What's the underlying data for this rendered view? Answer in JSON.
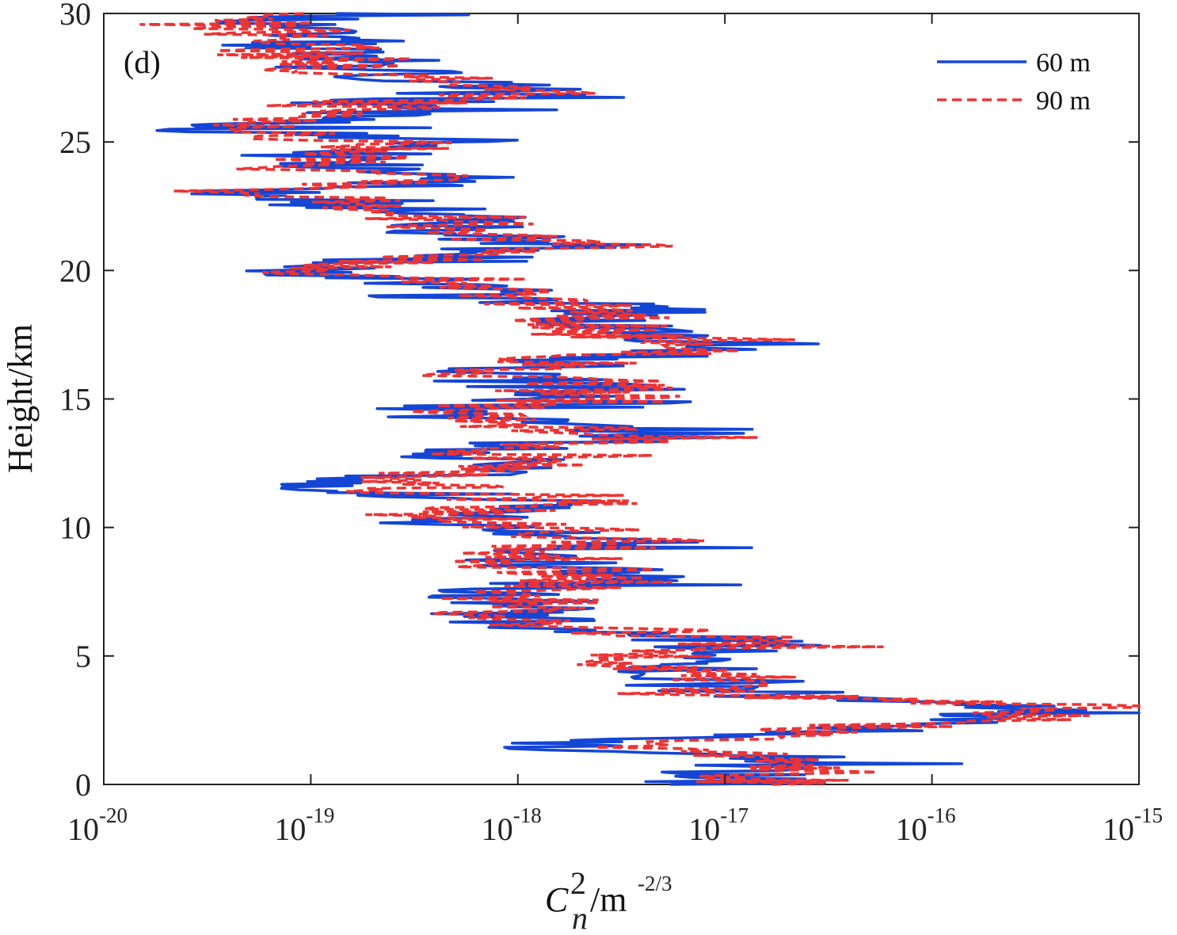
{
  "chart_data": {
    "type": "line",
    "panel_label": "(d)",
    "xscale": "log",
    "xlim_exp": [
      -20,
      -15
    ],
    "ylim": [
      0,
      30
    ],
    "xlabel": {
      "base": "C",
      "sub": "n",
      "sup": "2",
      "unit": "/m",
      "unit_sup": "-2/3"
    },
    "ylabel": "Height/km",
    "tick_base": "10",
    "xtick_exponents": [
      "-20",
      "-19",
      "-18",
      "-17",
      "-16",
      "-15"
    ],
    "ytick_labels": [
      "0",
      "5",
      "10",
      "15",
      "20",
      "25",
      "30"
    ],
    "legend_position": "top-right",
    "series": [
      {
        "name": "60 m",
        "color": "#1446d6",
        "style": "solid",
        "heights": [
          0.0,
          0.5,
          1.0,
          1.5,
          2.0,
          2.5,
          3.0,
          3.5,
          4.0,
          4.5,
          5.0,
          5.5,
          6.0,
          6.5,
          7.0,
          7.5,
          8.0,
          8.5,
          9.0,
          9.5,
          10.0,
          10.5,
          11.0,
          11.5,
          12.0,
          12.5,
          13.0,
          13.5,
          14.0,
          14.5,
          15.0,
          15.5,
          16.0,
          16.5,
          17.0,
          17.5,
          18.0,
          18.5,
          19.0,
          19.5,
          20.0,
          20.5,
          21.0,
          21.5,
          22.0,
          22.5,
          23.0,
          23.5,
          24.0,
          24.5,
          25.0,
          25.5,
          26.0,
          26.5,
          27.0,
          27.5,
          28.0,
          28.5,
          29.0,
          29.5,
          30.0
        ],
        "log10_cn2": [
          -16.9,
          -17.1,
          -16.7,
          -17.9,
          -16.8,
          -15.6,
          -15.5,
          -17.1,
          -17.0,
          -17.4,
          -17.3,
          -16.8,
          -17.6,
          -18.0,
          -17.9,
          -18.1,
          -17.5,
          -17.9,
          -17.8,
          -17.4,
          -18.0,
          -18.5,
          -17.9,
          -18.8,
          -18.5,
          -18.1,
          -18.3,
          -17.4,
          -17.9,
          -18.5,
          -17.8,
          -17.8,
          -18.2,
          -17.6,
          -16.8,
          -17.4,
          -17.6,
          -17.4,
          -18.3,
          -18.3,
          -19.2,
          -18.4,
          -17.7,
          -18.5,
          -18.2,
          -18.7,
          -19.3,
          -18.3,
          -18.9,
          -18.8,
          -18.5,
          -19.5,
          -18.9,
          -18.7,
          -18.0,
          -18.4,
          -18.9,
          -19.0,
          -19.0,
          -19.2,
          -19.2
        ]
      },
      {
        "name": "90 m",
        "color": "#ee3333",
        "style": "dashed",
        "heights": [
          0.0,
          0.5,
          1.0,
          1.5,
          2.0,
          2.5,
          3.0,
          3.5,
          4.0,
          4.5,
          5.0,
          5.5,
          6.0,
          6.5,
          7.0,
          7.5,
          8.0,
          8.5,
          9.0,
          9.5,
          10.0,
          10.5,
          11.0,
          11.5,
          12.0,
          12.5,
          13.0,
          13.5,
          14.0,
          14.5,
          15.0,
          15.5,
          16.0,
          16.5,
          17.0,
          17.5,
          18.0,
          18.5,
          19.0,
          19.5,
          20.0,
          20.5,
          21.0,
          21.5,
          22.0,
          22.5,
          23.0,
          23.5,
          24.0,
          24.5,
          25.0,
          25.5,
          26.0,
          26.5,
          27.0,
          27.5,
          28.0,
          28.5,
          29.0,
          29.5,
          30.0
        ],
        "log10_cn2": [
          -16.8,
          -16.7,
          -16.5,
          -17.6,
          -16.8,
          -15.8,
          -15.1,
          -17.0,
          -17.0,
          -17.3,
          -17.5,
          -16.9,
          -17.5,
          -18.0,
          -17.9,
          -18.0,
          -17.5,
          -17.9,
          -17.9,
          -17.5,
          -17.9,
          -18.4,
          -17.8,
          -18.6,
          -18.4,
          -18.0,
          -18.1,
          -17.2,
          -18.0,
          -18.4,
          -17.6,
          -17.7,
          -18.1,
          -17.8,
          -17.0,
          -17.6,
          -17.7,
          -17.5,
          -18.3,
          -18.3,
          -19.1,
          -18.4,
          -17.6,
          -18.5,
          -18.3,
          -18.8,
          -19.2,
          -18.4,
          -19.0,
          -18.9,
          -18.6,
          -19.6,
          -18.9,
          -18.7,
          -18.1,
          -18.5,
          -19.0,
          -19.1,
          -19.1,
          -19.3,
          -19.4
        ]
      }
    ]
  }
}
